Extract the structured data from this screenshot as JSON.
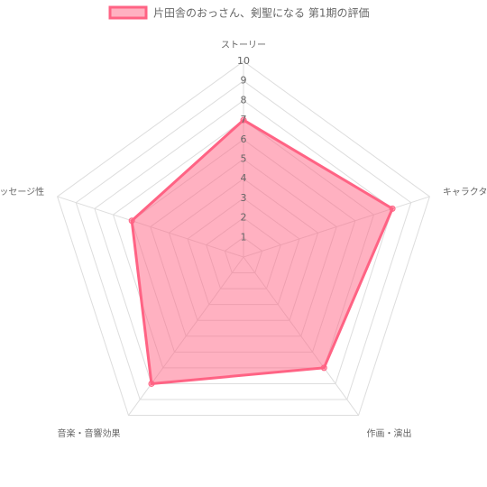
{
  "chart_data": {
    "type": "radar",
    "categories": [
      "ストーリー",
      "キャラクター",
      "作画・演出",
      "音楽・音響効果",
      "メッセージ性"
    ],
    "series": [
      {
        "name": "片田舎のおっさん、剣聖になる 第1期の評価",
        "color": "#ff6384",
        "values": [
          7,
          8,
          7,
          8,
          6
        ]
      }
    ],
    "rlim": [
      0,
      10
    ],
    "rticks": [
      1,
      2,
      3,
      4,
      5,
      6,
      7,
      8,
      9,
      10
    ],
    "grid": true,
    "legend": "top"
  }
}
